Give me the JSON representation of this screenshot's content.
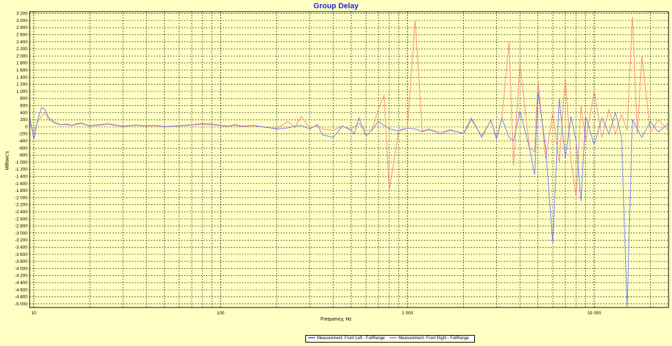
{
  "chart_data": {
    "type": "line",
    "title": "Group Delay",
    "xlabel": "Frequency, Hz",
    "ylabel": "Millisec's",
    "x_scale": "log",
    "xlim": [
      9.5,
      25000
    ],
    "ylim": [
      -5100,
      3250
    ],
    "x_ticks": [
      {
        "value": 10,
        "label": "10"
      },
      {
        "value": 100,
        "label": "100"
      },
      {
        "value": 1000,
        "label": "1 000"
      },
      {
        "value": 10000,
        "label": "10 000"
      }
    ],
    "y_ticks": [
      {
        "value": 3200,
        "label": "3 200"
      },
      {
        "value": 3000,
        "label": "3 000"
      },
      {
        "value": 2800,
        "label": "2 800"
      },
      {
        "value": 2600,
        "label": "2 600"
      },
      {
        "value": 2400,
        "label": "2 400"
      },
      {
        "value": 2200,
        "label": "2 200"
      },
      {
        "value": 2000,
        "label": "2 000"
      },
      {
        "value": 1800,
        "label": "1 800"
      },
      {
        "value": 1600,
        "label": "1 600"
      },
      {
        "value": 1400,
        "label": "1 400"
      },
      {
        "value": 1200,
        "label": "1 200"
      },
      {
        "value": 1000,
        "label": "1 000"
      },
      {
        "value": 800,
        "label": "800"
      },
      {
        "value": 600,
        "label": "600"
      },
      {
        "value": 400,
        "label": "400"
      },
      {
        "value": 200,
        "label": "200"
      },
      {
        "value": 0,
        "label": "0"
      },
      {
        "value": -200,
        "label": "-200"
      },
      {
        "value": -400,
        "label": "-400"
      },
      {
        "value": -600,
        "label": "-600"
      },
      {
        "value": -800,
        "label": "-800"
      },
      {
        "value": -1000,
        "label": "-1 000"
      },
      {
        "value": -1200,
        "label": "-1 200"
      },
      {
        "value": -1400,
        "label": "-1 400"
      },
      {
        "value": -1600,
        "label": "-1 600"
      },
      {
        "value": -1800,
        "label": "-1 800"
      },
      {
        "value": -2000,
        "label": "-2 000"
      },
      {
        "value": -2200,
        "label": "-2 200"
      },
      {
        "value": -2400,
        "label": "-2 400"
      },
      {
        "value": -2600,
        "label": "-2 600"
      },
      {
        "value": -2800,
        "label": "-2 800"
      },
      {
        "value": -3000,
        "label": "-3 000"
      },
      {
        "value": -3200,
        "label": "-3 200"
      },
      {
        "value": -3400,
        "label": "-3 400"
      },
      {
        "value": -3600,
        "label": "-3 600"
      },
      {
        "value": -3800,
        "label": "-3 800"
      },
      {
        "value": -4000,
        "label": "-4 000"
      },
      {
        "value": -4200,
        "label": "-4 200"
      },
      {
        "value": -4400,
        "label": "-4 400"
      },
      {
        "value": -4600,
        "label": "-4 600"
      },
      {
        "value": -4800,
        "label": "-4 800"
      },
      {
        "value": -5000,
        "label": "-5 000"
      }
    ],
    "grid": true,
    "legend_position": "bottom-center",
    "series": [
      {
        "name": "Measurement: Front Left - FullRange",
        "color": "#6b73ff",
        "x": [
          9.5,
          10,
          10.5,
          11,
          11.5,
          12,
          13,
          14,
          15,
          16,
          17,
          18,
          19,
          20,
          22,
          25,
          28,
          30,
          35,
          40,
          45,
          50,
          60,
          70,
          80,
          90,
          100,
          110,
          120,
          130,
          150,
          170,
          200,
          230,
          250,
          270,
          300,
          330,
          350,
          400,
          450,
          500,
          520,
          550,
          600,
          650,
          700,
          800,
          900,
          1000,
          1100,
          1200,
          1300,
          1500,
          1700,
          2000,
          2200,
          2500,
          2800,
          3000,
          3200,
          3500,
          3700,
          4000,
          4500,
          4800,
          5000,
          5500,
          6000,
          6500,
          7000,
          7500,
          8000,
          8500,
          9000,
          10000,
          11000,
          12000,
          13000,
          14000,
          15000,
          16000,
          18000,
          20000,
          22000,
          25000
        ],
        "y": [
          300,
          -350,
          200,
          550,
          480,
          260,
          120,
          60,
          80,
          40,
          90,
          110,
          60,
          30,
          60,
          90,
          40,
          20,
          50,
          30,
          40,
          10,
          30,
          60,
          90,
          80,
          40,
          20,
          60,
          20,
          40,
          0,
          -60,
          -30,
          20,
          40,
          -60,
          60,
          -220,
          -300,
          20,
          -100,
          -200,
          250,
          -260,
          -80,
          150,
          -60,
          -120,
          -40,
          -60,
          -140,
          -80,
          -200,
          -100,
          -180,
          250,
          -300,
          200,
          -350,
          250,
          -300,
          -400,
          450,
          -600,
          -1350,
          1000,
          -600,
          -3300,
          800,
          -900,
          300,
          -400,
          -2100,
          300,
          -500,
          250,
          -200,
          400,
          -300,
          -5100,
          200,
          -300,
          150,
          -150,
          100
        ],
        "values_note": ""
      },
      {
        "name": "Measurement: Front Right - FullRange",
        "color": "#ff8080",
        "x": [
          9.5,
          10,
          10.5,
          11,
          11.5,
          12,
          13,
          14,
          15,
          16,
          17,
          18,
          19,
          20,
          22,
          25,
          28,
          30,
          35,
          40,
          45,
          50,
          60,
          70,
          80,
          90,
          100,
          110,
          120,
          130,
          150,
          170,
          200,
          230,
          250,
          270,
          300,
          330,
          350,
          400,
          450,
          500,
          550,
          600,
          650,
          700,
          750,
          800,
          900,
          1000,
          1100,
          1200,
          1300,
          1500,
          1700,
          2000,
          2200,
          2500,
          2800,
          3000,
          3200,
          3500,
          3700,
          4000,
          4500,
          4800,
          5000,
          5500,
          6000,
          6500,
          7000,
          7500,
          8000,
          8500,
          9000,
          10000,
          11000,
          12000,
          13000,
          14000,
          15000,
          16000,
          17000,
          18000,
          20000,
          22000,
          25000
        ],
        "y": [
          100,
          -150,
          150,
          300,
          400,
          200,
          100,
          50,
          60,
          30,
          70,
          90,
          50,
          20,
          40,
          70,
          30,
          10,
          40,
          20,
          30,
          0,
          20,
          50,
          70,
          60,
          30,
          10,
          40,
          10,
          30,
          -10,
          -40,
          150,
          -20,
          300,
          -50,
          40,
          -60,
          -100,
          20,
          -80,
          100,
          -120,
          -60,
          500,
          900,
          -1800,
          -80,
          -40,
          3000,
          -120,
          -60,
          -150,
          -80,
          -200,
          200,
          -250,
          180,
          -300,
          200,
          2400,
          -1100,
          1800,
          -600,
          -700,
          1300,
          -900,
          400,
          -1000,
          1400,
          -900,
          -2000,
          600,
          -400,
          1000,
          -300,
          500,
          -200,
          350,
          -100,
          3100,
          -200,
          2000,
          -150,
          200,
          -100
        ]
      }
    ]
  }
}
